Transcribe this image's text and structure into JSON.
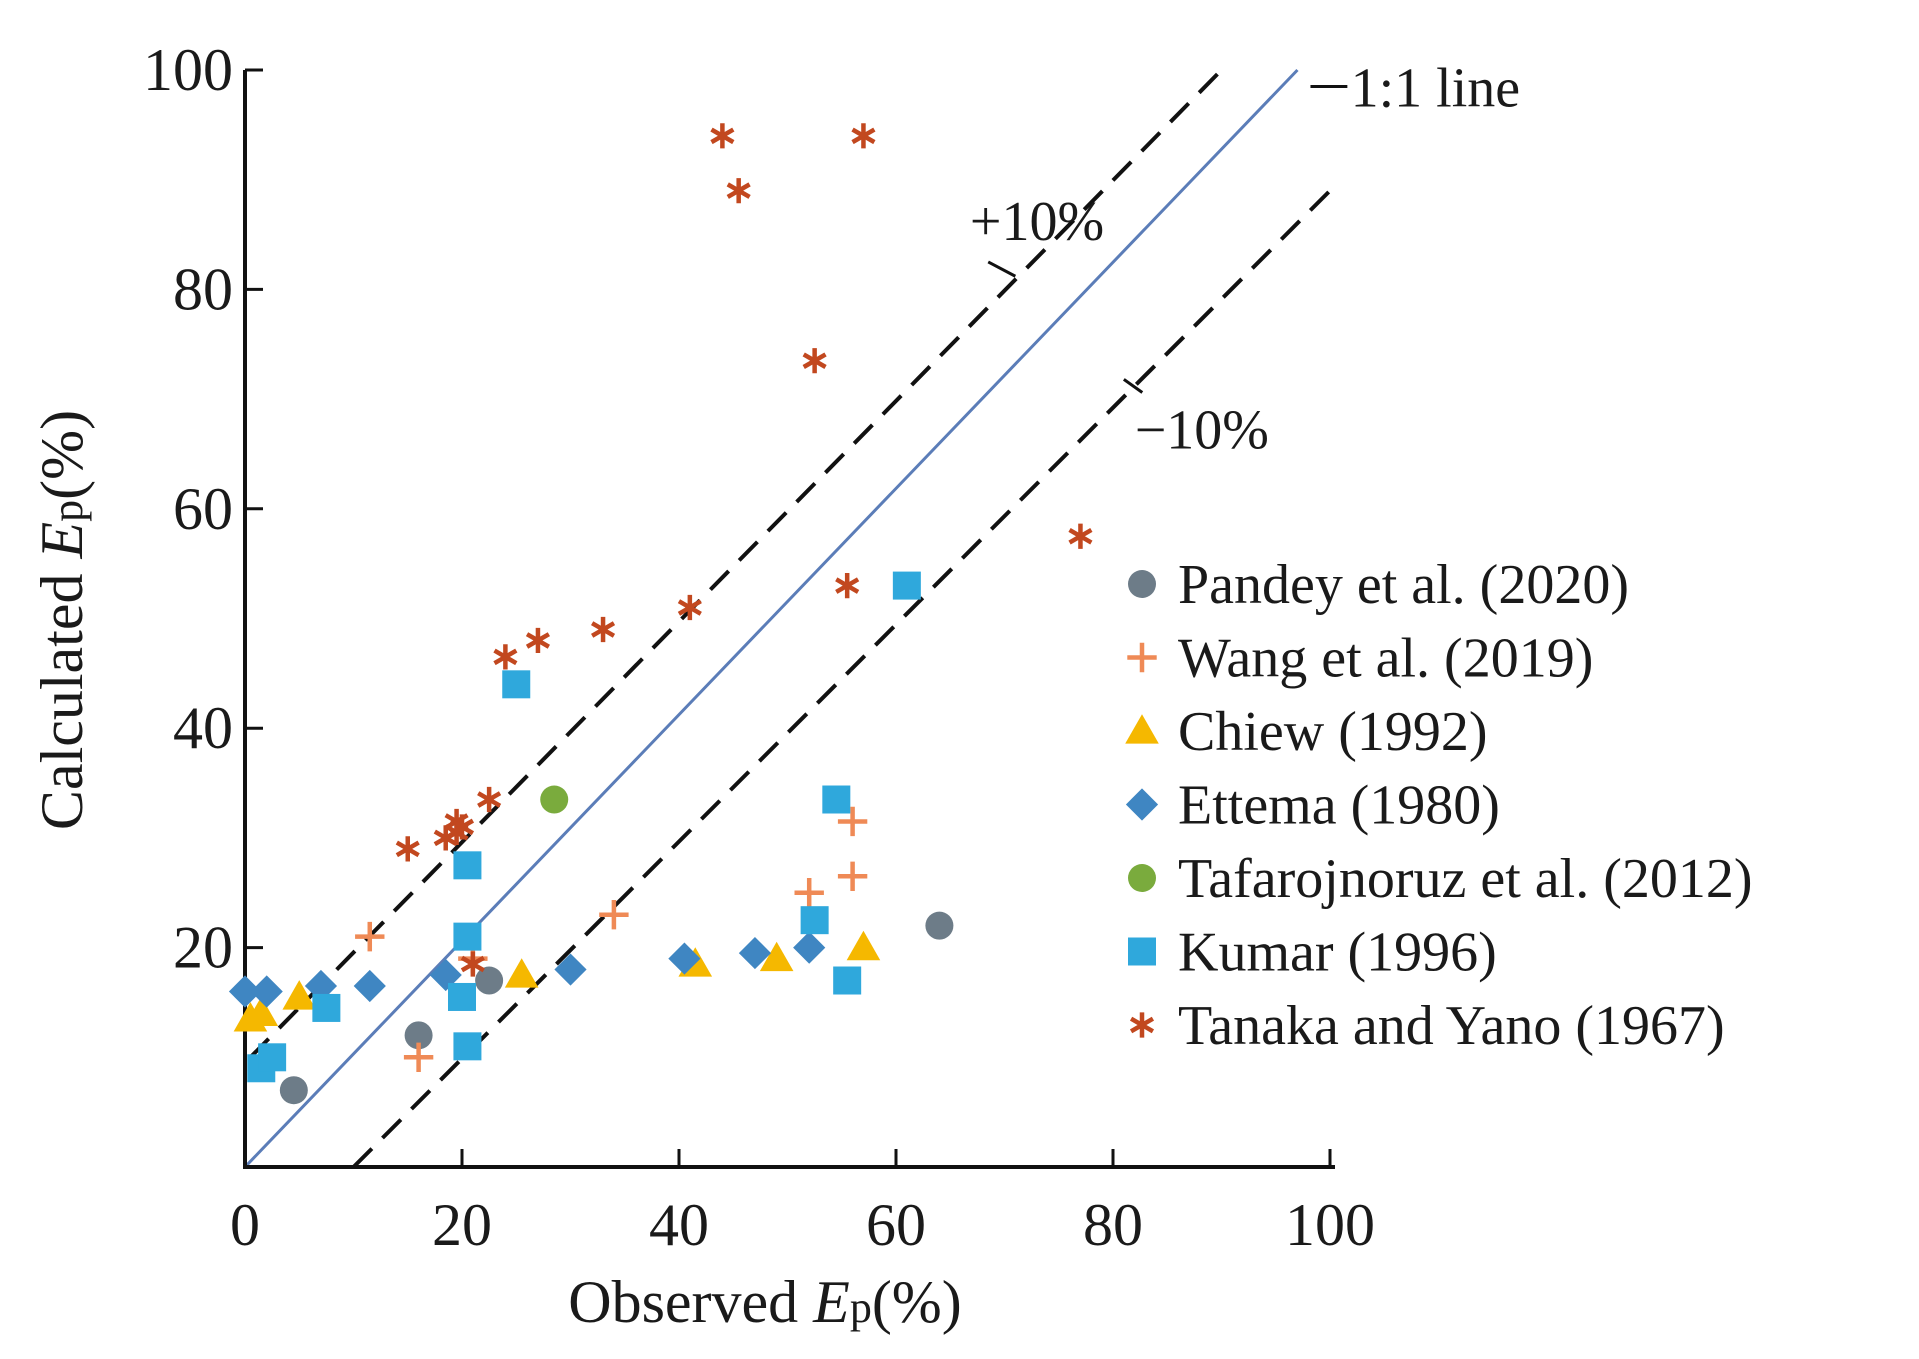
{
  "chart_data": {
    "type": "scatter",
    "xlabel": {
      "prefix": "Observed ",
      "var": "E",
      "sub": "p",
      "suffix": "(%)"
    },
    "ylabel": {
      "prefix": "Calculated ",
      "var": "E",
      "sub": "p",
      "suffix": "(%)"
    },
    "xlim": [
      0,
      100
    ],
    "ylim": [
      0,
      100
    ],
    "xticks": [
      0,
      20,
      40,
      60,
      80,
      100
    ],
    "yticks": [
      20,
      40,
      60,
      80,
      100
    ],
    "xtick_labels": [
      "0",
      "20",
      "40",
      "60",
      "80",
      "100"
    ],
    "ytick_labels": [
      "20",
      "40",
      "60",
      "80",
      "100"
    ],
    "grid": false,
    "legend_position": "right",
    "reference_lines": [
      {
        "name": "1:1 line",
        "label": "1:1 line",
        "style": "solid",
        "color": "#5b7db8",
        "x": [
          0,
          97
        ],
        "y": [
          0,
          100
        ]
      },
      {
        "name": "+10%",
        "label": "+10%",
        "style": "dashed",
        "color": "#111111",
        "x": [
          0.5,
          90
        ],
        "y": [
          10,
          100
        ]
      },
      {
        "name": "−10%",
        "label": "−10%",
        "style": "dashed",
        "color": "#111111",
        "x": [
          10,
          100
        ],
        "y": [
          0,
          89
        ]
      }
    ],
    "series": [
      {
        "name": "Pandey et al. (2020)",
        "marker": "circle",
        "color": "#6d7c88",
        "x": [
          4.5,
          16,
          22.5,
          64
        ],
        "y": [
          7,
          12,
          17,
          22
        ]
      },
      {
        "name": "Wang et al. (2019)",
        "marker": "plus",
        "color": "#ef8a56",
        "x": [
          11.5,
          34,
          16,
          52,
          56,
          56,
          21
        ],
        "y": [
          21,
          23,
          10,
          25,
          31.5,
          26.5,
          19
        ]
      },
      {
        "name": "Chiew (1992)",
        "marker": "triangle",
        "color": "#f5b800",
        "x": [
          0.5,
          1.5,
          5,
          25.5,
          41.5,
          49,
          57
        ],
        "y": [
          13.5,
          14,
          15.5,
          17.5,
          18.5,
          19,
          20
        ]
      },
      {
        "name": "Ettema (1980)",
        "marker": "diamond",
        "color": "#3f86c2",
        "x": [
          0,
          2,
          7,
          11.5,
          18.5,
          30,
          40.5,
          47,
          52
        ],
        "y": [
          16,
          16,
          16.5,
          16.5,
          17.5,
          18,
          19,
          19.5,
          20
        ]
      },
      {
        "name": "Tafarojnoruz et al. (2012)",
        "marker": "circle",
        "color": "#7aab3d",
        "x": [
          28.5
        ],
        "y": [
          33.5
        ]
      },
      {
        "name": "Kumar (1996)",
        "marker": "square",
        "color": "#2fa8dc",
        "x": [
          1.5,
          2.5,
          7.5,
          20,
          20.5,
          20.5,
          20.5,
          25,
          52.5,
          54.5,
          55.5,
          61
        ],
        "y": [
          9,
          10,
          14.5,
          15.5,
          11,
          21,
          27.5,
          44,
          22.5,
          33.5,
          17,
          53
        ]
      },
      {
        "name": "Tanaka and Yano (1967)",
        "marker": "asterisk",
        "color": "#c2481f",
        "x": [
          15,
          18.5,
          19.5,
          19.5,
          20,
          22.5,
          24,
          27,
          33,
          41,
          44,
          45.5,
          52.5,
          55.5,
          57,
          77,
          21
        ],
        "y": [
          29,
          30,
          30.5,
          31.5,
          31,
          33.5,
          46.5,
          48,
          49,
          51,
          94,
          89,
          73.5,
          53,
          94,
          57.5,
          18.5
        ]
      }
    ]
  }
}
